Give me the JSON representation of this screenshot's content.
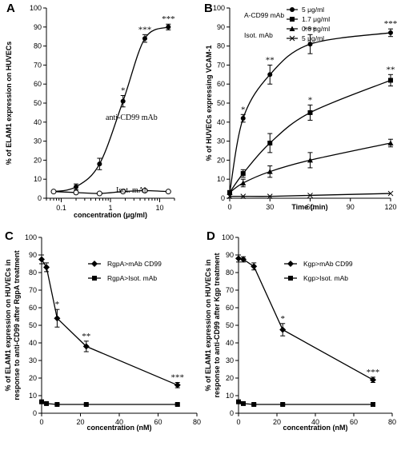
{
  "chart_data": [
    {
      "panel": "A",
      "type": "line",
      "ylabel": "% of ELAM1 expression on HUVECs",
      "xlabel": "concentration (μg/ml)",
      "xscale": "log",
      "xlim": [
        0.05,
        20
      ],
      "ylim": [
        0,
        100
      ],
      "x_ticks": [
        0.1,
        1,
        10
      ],
      "x_tick_labels": [
        "0.1",
        "1",
        "10"
      ],
      "y_ticks": [
        0,
        10,
        20,
        30,
        40,
        50,
        60,
        70,
        80,
        90,
        100
      ],
      "series": [
        {
          "name": "anti-CD99 mAb",
          "marker": "filled-circle",
          "x": [
            0.07,
            0.2,
            0.6,
            1.8,
            5,
            15
          ],
          "y": [
            3.5,
            6,
            18,
            51,
            84,
            90
          ],
          "err": [
            0.5,
            1.5,
            3,
            3,
            2,
            1.5
          ],
          "stars": [
            "",
            "",
            "",
            "*",
            "***",
            "***"
          ]
        },
        {
          "name": "Isot. mAb",
          "marker": "open-circle",
          "x": [
            0.07,
            0.2,
            0.6,
            1.8,
            5,
            15
          ],
          "y": [
            3.5,
            3,
            2.5,
            3.5,
            4,
            3.5
          ],
          "err": [
            0,
            0,
            0,
            0,
            0,
            0
          ],
          "stars": [
            "",
            "",
            "",
            "",
            "",
            ""
          ]
        }
      ]
    },
    {
      "panel": "B",
      "type": "line",
      "ylabel": "% of HUVECs expressing VCAM-1",
      "xlabel": "Time (min)",
      "xlim": [
        0,
        120
      ],
      "ylim": [
        0,
        100
      ],
      "x_ticks": [
        0,
        30,
        60,
        90,
        120
      ],
      "y_ticks": [
        0,
        10,
        20,
        30,
        40,
        50,
        60,
        70,
        80,
        90,
        100
      ],
      "legend_title_1": "A-CD99  mAb",
      "legend_title_2": "Isot. mAb",
      "legend_placement": "top-left",
      "series": [
        {
          "name": "5 μg/ml",
          "marker": "filled-circle",
          "x": [
            0,
            10,
            30,
            60,
            120
          ],
          "y": [
            3,
            42,
            65,
            81,
            87
          ],
          "err": [
            1,
            2,
            5,
            5,
            2
          ],
          "stars": [
            "",
            "*",
            "**",
            "***",
            "***"
          ]
        },
        {
          "name": "1.7 μg/ml",
          "marker": "filled-square",
          "x": [
            0,
            10,
            30,
            60,
            120
          ],
          "y": [
            3,
            13,
            29,
            45,
            62
          ],
          "err": [
            1,
            2,
            5,
            4,
            3
          ],
          "stars": [
            "",
            "",
            "",
            "*",
            "**"
          ]
        },
        {
          "name": "0.6 μg/ml",
          "marker": "filled-triangle",
          "x": [
            0,
            10,
            30,
            60,
            120
          ],
          "y": [
            3,
            8,
            14,
            20,
            29
          ],
          "err": [
            1,
            2,
            3,
            4,
            2
          ],
          "stars": [
            "",
            "",
            "",
            "",
            ""
          ]
        },
        {
          "name": "5 μg/ml",
          "marker": "x",
          "x": [
            0,
            10,
            30,
            60,
            120
          ],
          "y": [
            1,
            1,
            1,
            1.5,
            2.5
          ],
          "err": [
            0,
            0,
            0,
            0,
            0
          ],
          "stars": [
            "",
            "",
            "",
            "",
            ""
          ]
        }
      ]
    },
    {
      "panel": "C",
      "type": "line",
      "ylabel_line1": "% of ELAM1 expression on HUVECs in",
      "ylabel_line2": "response to anti-CD99 after RgpA treatment",
      "xlabel": "concentration (nM)",
      "xlim": [
        0,
        80
      ],
      "ylim": [
        0,
        100
      ],
      "x_ticks": [
        0,
        20,
        40,
        60,
        80
      ],
      "y_ticks": [
        0,
        10,
        20,
        30,
        40,
        50,
        60,
        70,
        80,
        90,
        100
      ],
      "legend_placement": "top-right",
      "series": [
        {
          "name": "RgpA>mAb CD99",
          "marker": "filled-diamond",
          "x": [
            0,
            2.5,
            8,
            23,
            70
          ],
          "y": [
            87.5,
            83,
            54,
            38,
            16
          ],
          "err": [
            2.5,
            2.5,
            5,
            3,
            1.5
          ],
          "stars": [
            "",
            "",
            "*",
            "**",
            "***"
          ]
        },
        {
          "name": "RgpA>Isot. mAb",
          "marker": "filled-square",
          "x": [
            0,
            2.5,
            8,
            23,
            70
          ],
          "y": [
            6.5,
            5.5,
            5,
            5,
            5
          ],
          "err": [
            0.5,
            0.5,
            0.5,
            0.5,
            0.5
          ],
          "stars": [
            "",
            "",
            "",
            "",
            ""
          ]
        }
      ]
    },
    {
      "panel": "D",
      "type": "line",
      "ylabel_line1": "% of ELAM1 expression on HUVECs in",
      "ylabel_line2": "response to anti-CD99 after Kgp treatment",
      "xlabel": "concentration (nM)",
      "xlim": [
        0,
        80
      ],
      "ylim": [
        0,
        100
      ],
      "x_ticks": [
        0,
        20,
        40,
        60,
        80
      ],
      "y_ticks": [
        0,
        10,
        20,
        30,
        40,
        50,
        60,
        70,
        80,
        90,
        100
      ],
      "legend_placement": "top-right",
      "series": [
        {
          "name": "Kgp>mAb CD99",
          "marker": "filled-diamond",
          "x": [
            0,
            2.5,
            8,
            23,
            70
          ],
          "y": [
            88,
            87.5,
            83.5,
            47.5,
            19
          ],
          "err": [
            2,
            1.5,
            2,
            3.5,
            1.5
          ],
          "stars": [
            "",
            "",
            "",
            "*",
            "***"
          ]
        },
        {
          "name": "Kgp>Isot. mAb",
          "marker": "filled-square",
          "x": [
            0,
            2.5,
            8,
            23,
            70
          ],
          "y": [
            6.5,
            5.5,
            5,
            5,
            5
          ],
          "err": [
            0.5,
            0.5,
            0.5,
            0.5,
            0.5
          ],
          "stars": [
            "",
            "",
            "",
            "",
            ""
          ]
        }
      ]
    }
  ]
}
